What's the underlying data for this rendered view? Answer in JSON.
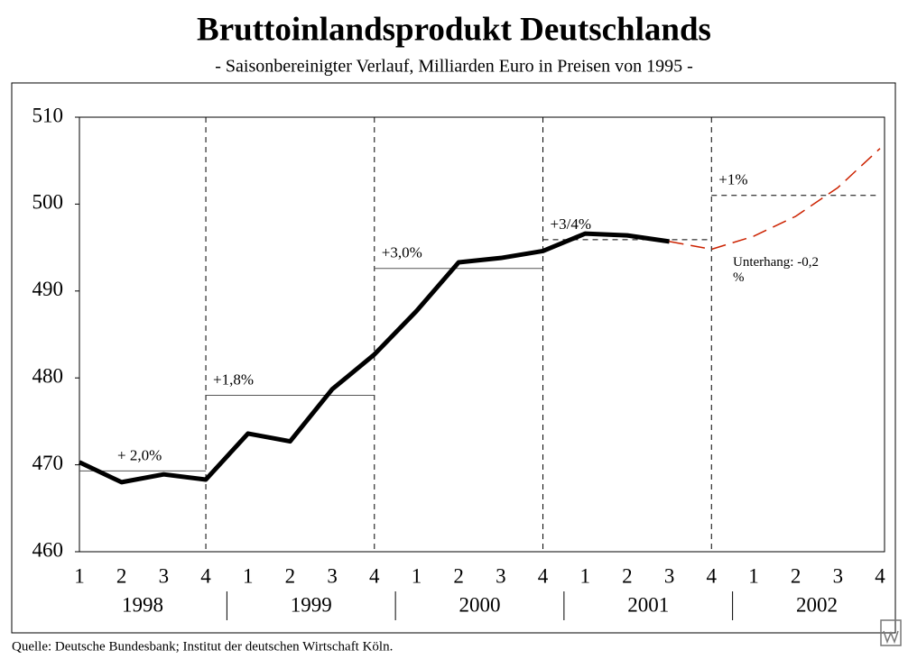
{
  "chart_data": {
    "type": "line",
    "title": "Bruttoinlandsprodukt Deutschlands",
    "subtitle": "- Saisonbereinigter Verlauf, Milliarden Euro in Preisen von 1995 -",
    "categories": [
      "1",
      "2",
      "3",
      "4",
      "1",
      "2",
      "3",
      "4",
      "1",
      "2",
      "3",
      "4",
      "1",
      "2",
      "3",
      "4",
      "1",
      "2",
      "3",
      "4"
    ],
    "years": [
      "1998",
      "1999",
      "2000",
      "2001",
      "2002"
    ],
    "series": [
      {
        "color": "#000000",
        "dashed": false,
        "values": [
          470.3,
          468.0,
          468.9,
          468.3,
          473.6,
          472.7,
          478.7,
          482.7,
          487.7,
          493.3,
          493.8,
          494.6,
          496.6,
          496.4,
          495.7,
          null,
          null,
          null,
          null,
          null
        ]
      },
      {
        "color": "#cc2200",
        "dashed": true,
        "values": [
          null,
          null,
          null,
          null,
          null,
          null,
          null,
          null,
          null,
          null,
          null,
          null,
          null,
          null,
          495.7,
          494.8,
          496.3,
          498.6,
          501.9,
          506.4
        ]
      }
    ],
    "year_averages": [
      {
        "label": "+ 2,0%",
        "value": 469.3,
        "dashed": false
      },
      {
        "label": "+1,8%",
        "value": 478.0,
        "dashed": false
      },
      {
        "label": "+3,0%",
        "value": 492.6,
        "dashed": false
      },
      {
        "label": "+3/4%",
        "value": 495.9,
        "dashed": true
      },
      {
        "label": "+1%",
        "value": 501.0,
        "dashed": true
      }
    ],
    "note": "Unterhang: -0,2 %",
    "source": "Quelle: Deutsche Bundesbank; Institut der deutschen Wirtschaft Köln.",
    "ylim": [
      460,
      510
    ],
    "yticks": [
      460,
      470,
      480,
      490,
      500,
      510
    ],
    "grid": false
  }
}
